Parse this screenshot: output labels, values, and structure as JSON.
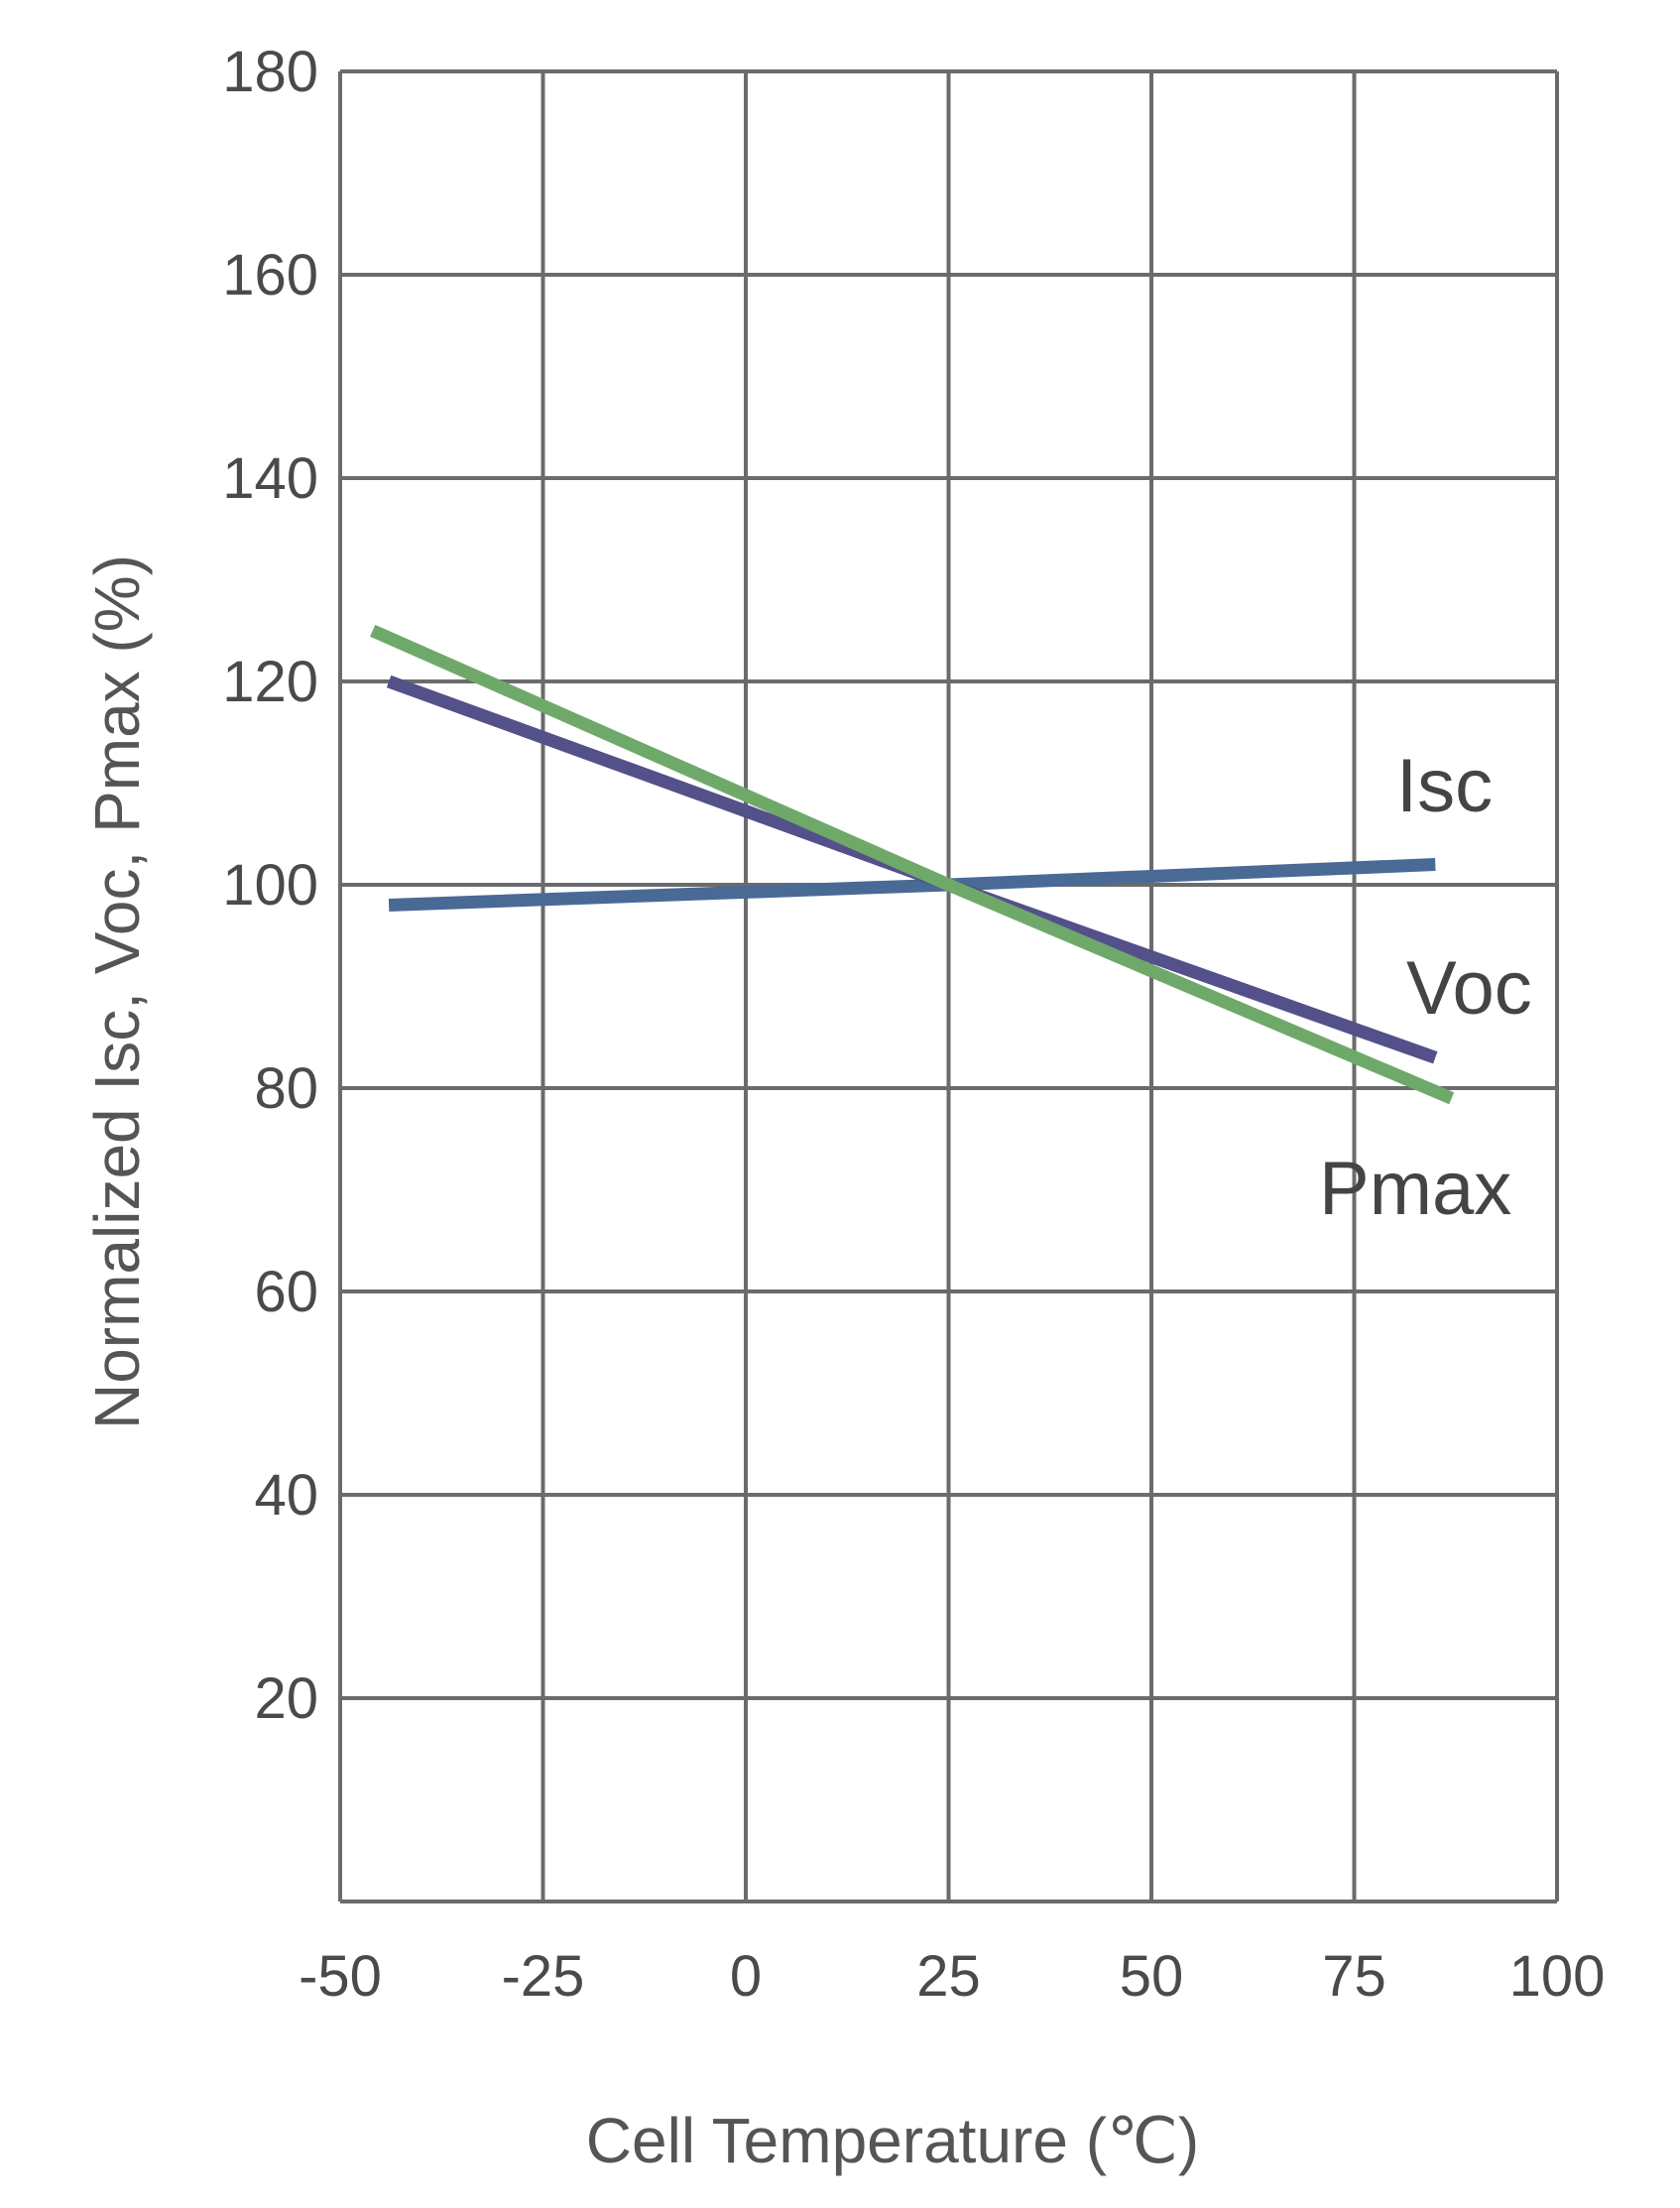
{
  "chart_data": {
    "type": "line",
    "title": "",
    "xlabel": "Cell Temperature (℃)",
    "ylabel": "Normalized Isc, Voc, Pmax (%)",
    "xlim": [
      -50,
      100
    ],
    "ylim": [
      0,
      180
    ],
    "xticks": [
      "-50",
      "-25",
      "0",
      "25",
      "50",
      "75",
      "100"
    ],
    "yticks": [
      "20",
      "40",
      "60",
      "80",
      "100",
      "120",
      "140",
      "160",
      "180"
    ],
    "grid": true,
    "series": [
      {
        "name": "Isc",
        "color": "#4a6a96",
        "x": [
          -44,
          25,
          85
        ],
        "y": [
          98,
          100,
          102
        ]
      },
      {
        "name": "Voc",
        "color": "#53508a",
        "x": [
          -44,
          25,
          85
        ],
        "y": [
          120,
          100,
          83
        ]
      },
      {
        "name": "Pmax",
        "color": "#6fa96a",
        "x": [
          -46,
          25,
          87
        ],
        "y": [
          125,
          100,
          79
        ]
      }
    ]
  }
}
